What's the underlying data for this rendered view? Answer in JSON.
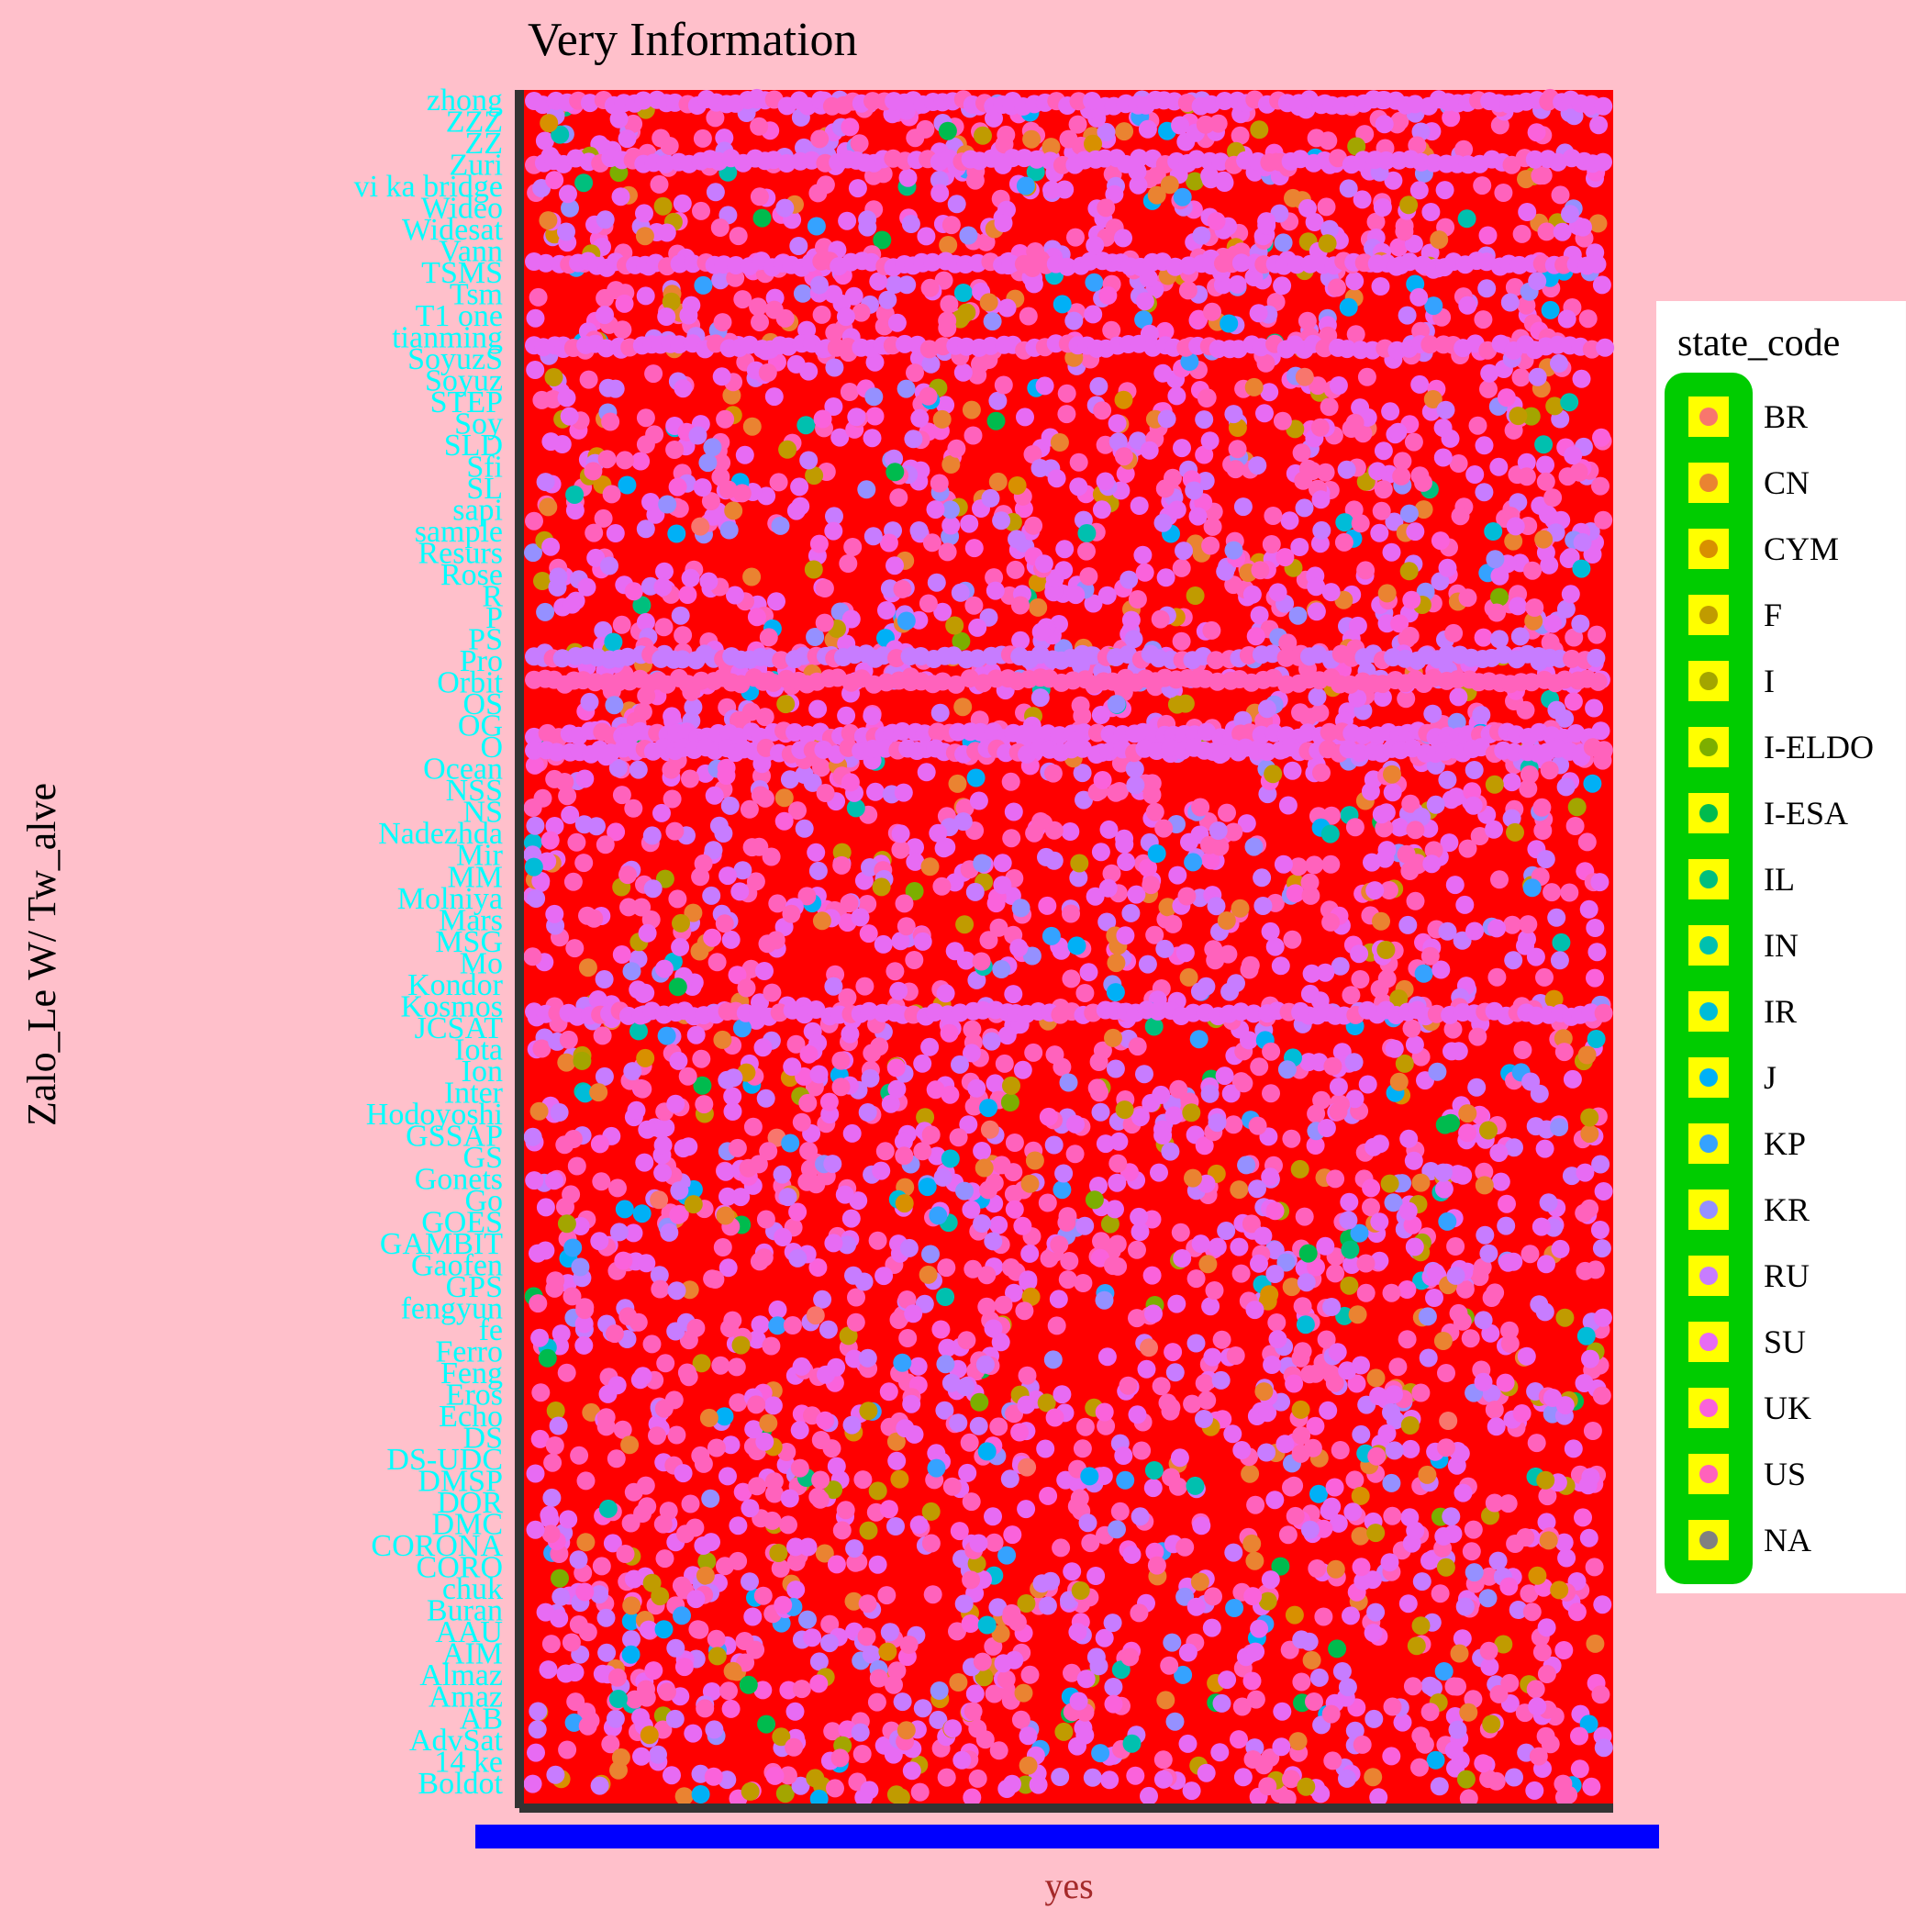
{
  "chart_data": {
    "type": "scatter",
    "title": "Very Information",
    "xlabel": "yes",
    "ylabel": "Zalo_Le W/ Tw_alve",
    "legend": {
      "title": "state_code",
      "placement": "right",
      "entries": [
        {
          "label": "BR",
          "color": "#F8766D"
        },
        {
          "label": "CN",
          "color": "#EA8331"
        },
        {
          "label": "CYM",
          "color": "#D89000"
        },
        {
          "label": "F",
          "color": "#C09B00"
        },
        {
          "label": "I",
          "color": "#A3A500"
        },
        {
          "label": "I-ELDO",
          "color": "#7CAE00"
        },
        {
          "label": "I-ESA",
          "color": "#00BB4E"
        },
        {
          "label": "IL",
          "color": "#00BF7D"
        },
        {
          "label": "IN",
          "color": "#00C0AF"
        },
        {
          "label": "IR",
          "color": "#00BCD8"
        },
        {
          "label": "J",
          "color": "#00B0F6"
        },
        {
          "label": "KP",
          "color": "#35A2FF"
        },
        {
          "label": "KR",
          "color": "#9590FF"
        },
        {
          "label": "RU",
          "color": "#C77CFF"
        },
        {
          "label": "SU",
          "color": "#E76BF3"
        },
        {
          "label": "UK",
          "color": "#FA62DB"
        },
        {
          "label": "US",
          "color": "#FF62BC"
        },
        {
          "label": "NA",
          "color": "#808080"
        }
      ]
    },
    "y_categories": [
      "zhong",
      "ZZZ",
      "ZZ",
      "Zuri",
      "vi ka bridge",
      "Wideo",
      "Widesat",
      "Vann",
      "TSMS",
      "Tsm",
      "T1 one",
      "tianming",
      "SoyuzS",
      "Soyuz",
      "STEP",
      "Soy",
      "SLD",
      "Sfi",
      "SL",
      "sapi",
      "sample",
      "Resurs",
      "Rose",
      "R",
      "P",
      "PS",
      "Pro",
      "Orbit",
      "OS",
      "OG",
      "O",
      "Ocean",
      "NSS",
      "NS",
      "Nadezhda",
      "Mir",
      "MM",
      "Molniya",
      "Mars",
      "MSG",
      "Mo",
      "Kondor",
      "Kosmos",
      "JCSAT",
      "Iota",
      "Ion",
      "Inter",
      "Hodoyoshi",
      "GSSAP",
      "GS",
      "Gonets",
      "Go",
      "GOES",
      "GAMBIT",
      "Gaofen",
      "GPS",
      "fengyun",
      "fe",
      "Ferro",
      "Feng",
      "Eros",
      "Echo",
      "DS",
      "DS-UDC",
      "DMSP",
      "DOR",
      "DMC",
      "CORONA",
      "CORO",
      "chuk",
      "Buran",
      "AAU",
      "AIM",
      "Almaz",
      "Amaz",
      "AB",
      "AdvSat",
      "14 ke",
      "Boldot"
    ],
    "x_domain": [
      0,
      1
    ],
    "grid": false
  },
  "colors": {
    "page_background": "#FFC0CB",
    "panel_background": "#FF0000",
    "axis_line": "#333333",
    "y_tick_labels": "#00FFFF",
    "x_tick_strip": "#0000FF",
    "x_label": "#A52A2A",
    "legend_box": "#FFFFFF",
    "legend_key_strip": "#00CC00",
    "legend_key_background": "#FFFF00"
  }
}
